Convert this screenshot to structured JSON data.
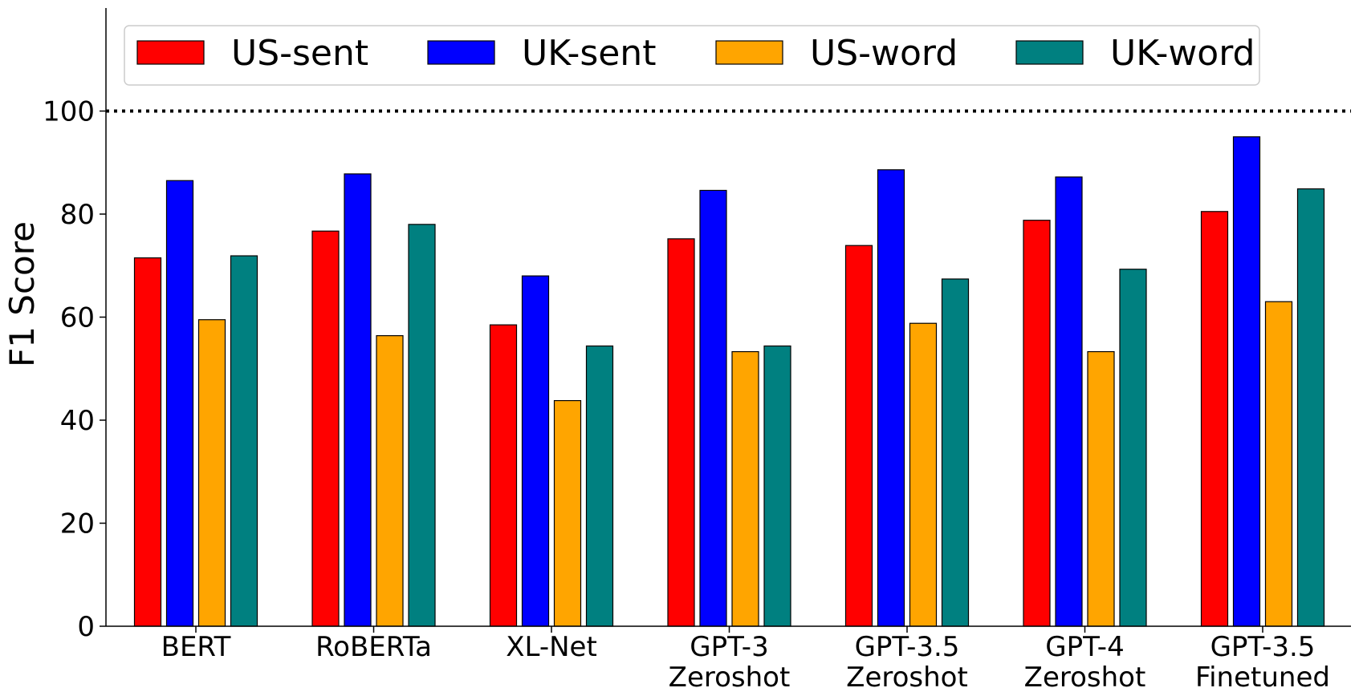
{
  "chart_data": {
    "type": "bar",
    "categories": [
      [
        "BERT"
      ],
      [
        "RoBERTa"
      ],
      [
        "XL-Net"
      ],
      [
        "GPT-3",
        "Zeroshot"
      ],
      [
        "GPT-3.5",
        "Zeroshot"
      ],
      [
        "GPT-4",
        "Zeroshot"
      ],
      [
        "GPT-3.5",
        "Finetuned"
      ]
    ],
    "series": [
      {
        "name": "US-sent",
        "color": "#ff0000",
        "values": [
          71.5,
          76.7,
          58.5,
          75.2,
          73.9,
          78.8,
          80.5
        ]
      },
      {
        "name": "UK-sent",
        "color": "#0000ff",
        "values": [
          86.5,
          87.8,
          68.0,
          84.6,
          88.6,
          87.2,
          95.0
        ]
      },
      {
        "name": "US-word",
        "color": "#ffa500",
        "values": [
          59.5,
          56.4,
          43.8,
          53.3,
          58.8,
          53.3,
          63.0
        ]
      },
      {
        "name": "UK-word",
        "color": "#008080",
        "values": [
          71.9,
          78.0,
          54.4,
          54.4,
          67.4,
          69.3,
          84.9
        ]
      }
    ],
    "ylabel": "F1 Score",
    "xlabel": "",
    "title": "",
    "ylim": [
      0,
      120
    ],
    "yticks": [
      0,
      20,
      40,
      60,
      80,
      100
    ],
    "reference_line": {
      "y": 100,
      "style": "dotted"
    },
    "grid": false,
    "legend_position": "top"
  }
}
